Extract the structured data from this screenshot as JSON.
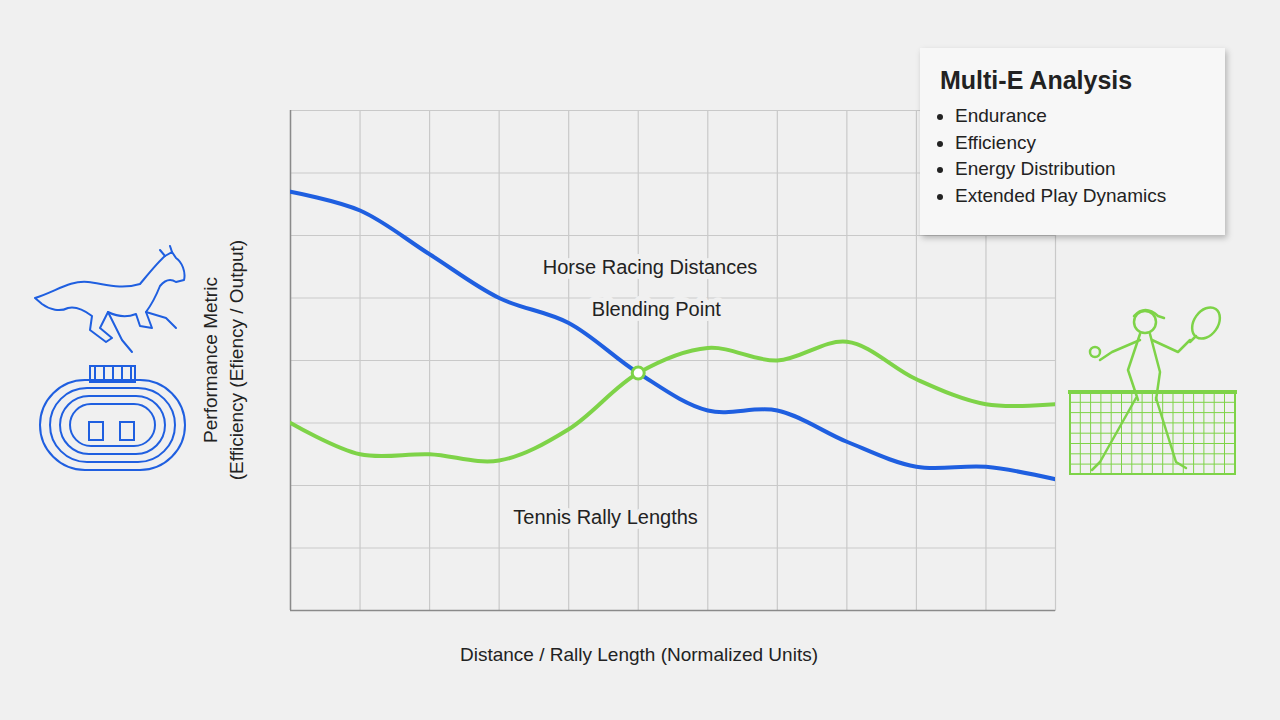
{
  "chart_data": {
    "type": "line",
    "xlabel": "Distance / Rally Length (Normalized Units)",
    "ylabel": [
      "Performance Metric",
      "(Efficiency (Efiency / Output)"
    ],
    "x": [
      0,
      1,
      2,
      3,
      4,
      5,
      6,
      7,
      8,
      9,
      10,
      11
    ],
    "series": [
      {
        "color": "#1f5fe0",
        "values": [
          6.7,
          6.4,
          5.7,
          5.0,
          4.6,
          3.8,
          3.2,
          3.2,
          2.7,
          2.3,
          2.3,
          2.1
        ]
      },
      {
        "color": "#7ed348",
        "values": [
          3.0,
          2.5,
          2.5,
          2.4,
          2.9,
          3.8,
          4.2,
          4.0,
          4.3,
          3.7,
          3.3,
          3.3
        ]
      }
    ],
    "xlim": [
      0,
      11
    ],
    "xticks": [
      0,
      1,
      2,
      3,
      4,
      5,
      6,
      7,
      8,
      9,
      10,
      11
    ],
    "ylim": [
      0,
      8
    ],
    "yticks": [
      0,
      1,
      2,
      3,
      4,
      5,
      6,
      7,
      8
    ],
    "grid": true,
    "tick_labels": false,
    "annotations": [
      {
        "text": "Horse Racing Distances",
        "x": 5.17,
        "y": 5.49
      },
      {
        "text": "Blending Point",
        "x": 5.26,
        "y": 4.82
      },
      {
        "text": "Tennis Rally Lengths",
        "x": 4.53,
        "y": 1.49
      }
    ],
    "highlight": {
      "x": 5,
      "y": 3.8
    },
    "info_box": {
      "title": "Multi-E Analysis",
      "items": [
        "Endurance",
        "Efficiency",
        "Energy Distribution",
        "Extended Play Dynamics"
      ]
    }
  }
}
